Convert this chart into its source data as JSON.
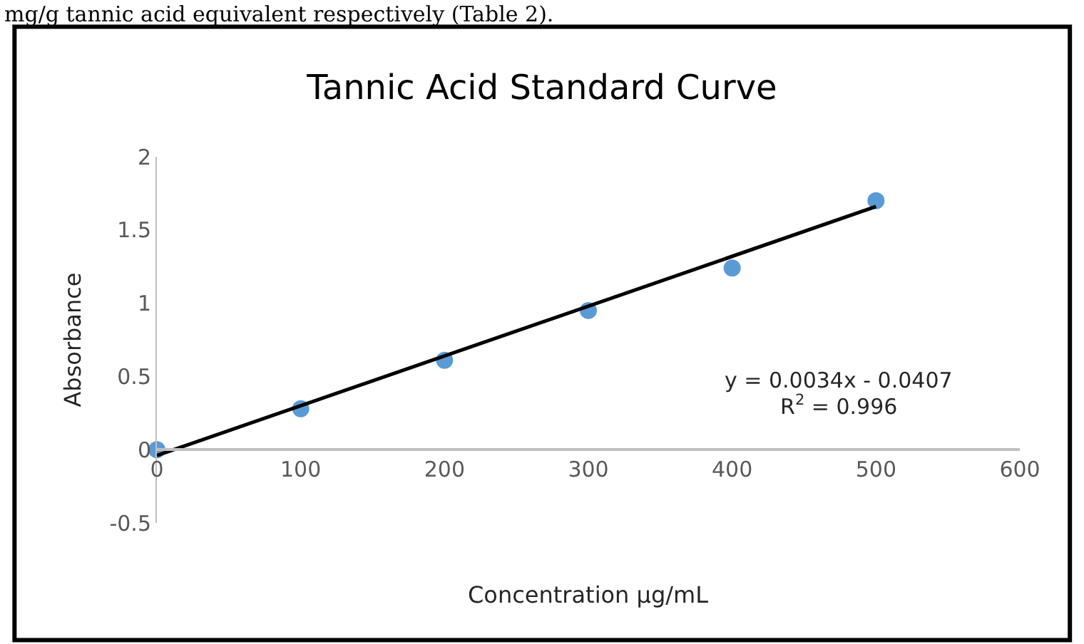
{
  "chart_data": {
    "type": "scatter",
    "title": "Tannic Acid Standard Curve",
    "xlabel": "Concentration µg/mL",
    "ylabel": "Absorbance",
    "x": [
      0,
      100,
      200,
      300,
      400,
      500
    ],
    "series": [
      {
        "color": "#5b9bd5",
        "marker": "circle",
        "values": [
          0,
          0.28,
          0.61,
          0.95,
          1.24,
          1.7
        ]
      },
      {
        "type": "line",
        "color": "#000000",
        "marker": "none",
        "line_style": "solid",
        "x": [
          0,
          500
        ],
        "values": [
          -0.04,
          1.66
        ]
      }
    ],
    "xlim": [
      0,
      600
    ],
    "xticks": [
      0,
      100,
      200,
      300,
      400,
      500,
      600
    ],
    "ylim": [
      -0.5,
      2
    ],
    "yticks": [
      -0.5,
      0,
      0.5,
      1,
      1.5,
      2
    ],
    "annotations": [
      "mg/g tannic acid equivalent respectively (Table 2).",
      "y = 0.0034x - 0.0407",
      "R$^{2}$ = 0.996"
    ]
  }
}
